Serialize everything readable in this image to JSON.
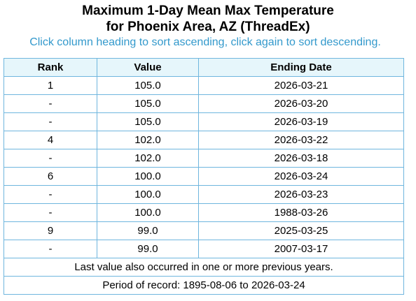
{
  "title": {
    "line1": "Maximum 1-Day Mean Max Temperature",
    "line2": "for Phoenix Area, AZ (ThreadEx)"
  },
  "instructions": "Click column heading to sort ascending, click again to sort descending.",
  "table": {
    "headers": {
      "rank": "Rank",
      "value": "Value",
      "date": "Ending Date"
    },
    "rows": [
      {
        "rank": "1",
        "value": "105.0",
        "date": "2026-03-21"
      },
      {
        "rank": "-",
        "value": "105.0",
        "date": "2026-03-20"
      },
      {
        "rank": "-",
        "value": "105.0",
        "date": "2026-03-19"
      },
      {
        "rank": "4",
        "value": "102.0",
        "date": "2026-03-22"
      },
      {
        "rank": "-",
        "value": "102.0",
        "date": "2026-03-18"
      },
      {
        "rank": "6",
        "value": "100.0",
        "date": "2026-03-24"
      },
      {
        "rank": "-",
        "value": "100.0",
        "date": "2026-03-23"
      },
      {
        "rank": "-",
        "value": "100.0",
        "date": "1988-03-26"
      },
      {
        "rank": "9",
        "value": "99.0",
        "date": "2025-03-25"
      },
      {
        "rank": "-",
        "value": "99.0",
        "date": "2007-03-17"
      }
    ],
    "footer_note": "Last value also occurred in one or more previous years.",
    "period_of_record": "Period of record: 1895-08-06 to 2026-03-24"
  },
  "colors": {
    "instructions_text": "#3399cc",
    "header_background": "#e6f6fb",
    "border": "#6fb6de"
  }
}
